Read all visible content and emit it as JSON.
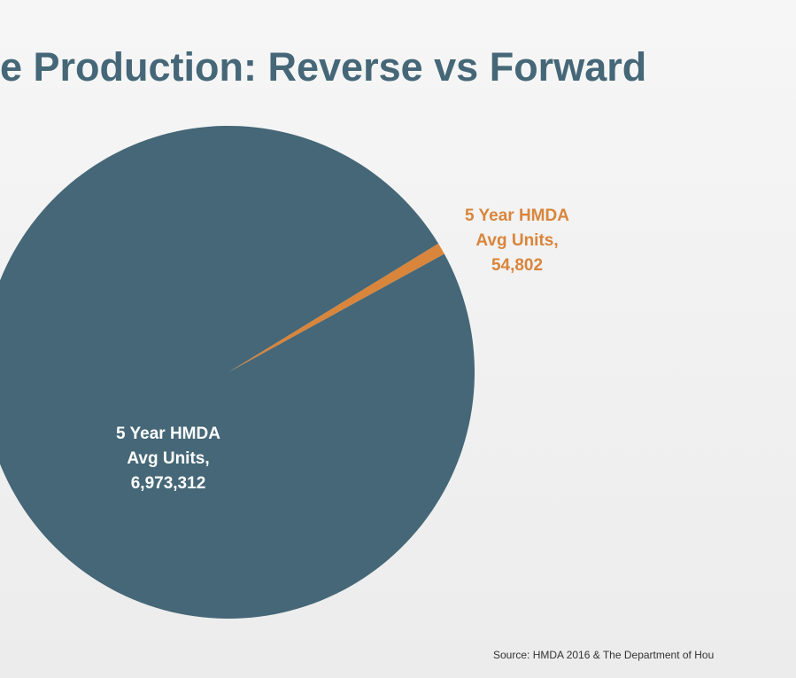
{
  "chart_data": {
    "type": "pie",
    "title": "e Production: Reverse vs Forward",
    "categories": [
      "5 Year HMDA Avg Units,",
      "5 Year HMDA Avg Units,"
    ],
    "values": [
      54802,
      6973312
    ],
    "value_labels": [
      "54,802",
      "6,973,312"
    ],
    "colors": [
      "#d9853b",
      "#456777"
    ],
    "source": "Source: HMDA 2016 & The Department of Hou"
  }
}
